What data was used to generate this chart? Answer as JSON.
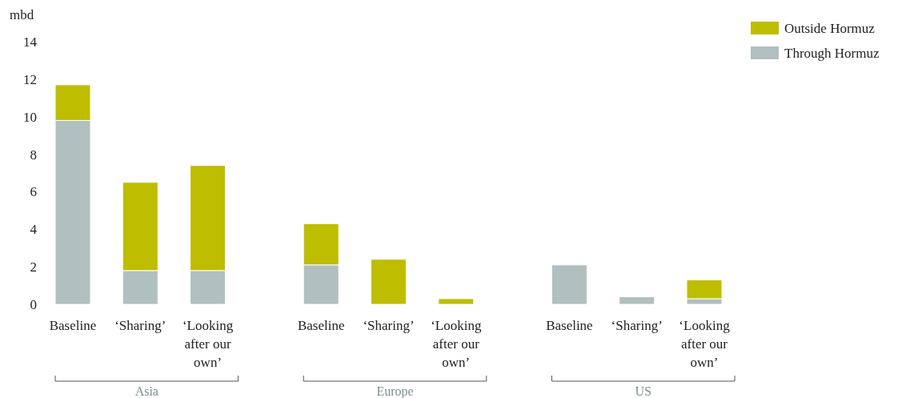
{
  "chart_data": {
    "type": "bar",
    "stacked": true,
    "ylabel": "mbd",
    "categories": [
      "Baseline",
      "‘Sharing’",
      "‘Looking after our own’",
      "Baseline",
      "‘Sharing’",
      "‘Looking after our own’",
      "Baseline",
      "‘Sharing’",
      "‘Looking after our own’"
    ],
    "series": [
      {
        "name": "Through Hormuz",
        "color": "#b0bfbf",
        "values": [
          9.8,
          1.8,
          1.8,
          2.1,
          0,
          0,
          2.1,
          0.4,
          0.3
        ]
      },
      {
        "name": "Outside Hormuz",
        "color": "#bfbd00",
        "values": [
          1.9,
          4.7,
          5.6,
          2.2,
          2.4,
          0.3,
          0,
          0,
          1.0
        ]
      }
    ],
    "ylim": [
      0,
      14
    ],
    "yticks": [
      0,
      2,
      4,
      6,
      8,
      10,
      12,
      14
    ],
    "grid": false,
    "legend": "top right",
    "annotations": [
      "Asia",
      "Europe",
      "US"
    ]
  }
}
